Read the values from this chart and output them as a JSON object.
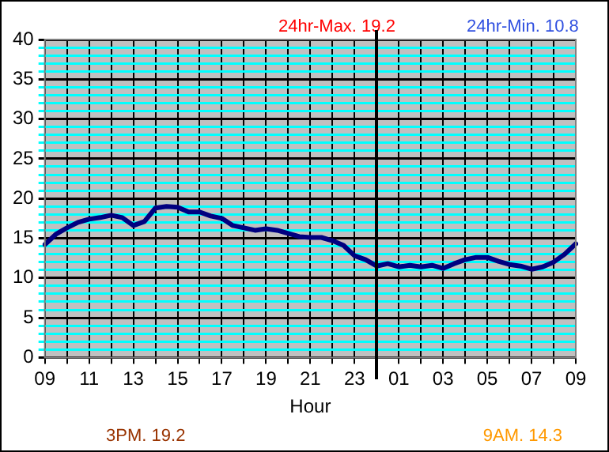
{
  "chart_data": {
    "type": "line",
    "xlabel": "Hour",
    "annotations": [
      "24hr-Max. 19.2",
      "24hr-Min. 10.8",
      "3PM. 19.2",
      "9AM. 14.3"
    ],
    "categories": [
      "09",
      null,
      null,
      null,
      "11",
      null,
      null,
      null,
      "13",
      null,
      null,
      null,
      "15",
      null,
      null,
      null,
      "17",
      null,
      null,
      null,
      "19",
      null,
      null,
      null,
      "21",
      null,
      null,
      null,
      "23",
      null,
      null,
      null,
      "01",
      null,
      null,
      null,
      "03",
      null,
      null,
      null,
      "05",
      null,
      null,
      null,
      "07",
      null,
      null,
      null,
      "09"
    ],
    "series": [
      {
        "color": "#000080",
        "values": [
          14.2,
          15.5,
          16.3,
          17.0,
          17.4,
          17.6,
          17.9,
          17.6,
          16.6,
          17.1,
          18.8,
          19.0,
          18.9,
          18.3,
          18.3,
          17.8,
          17.5,
          16.6,
          16.3,
          16.0,
          16.2,
          16.0,
          15.6,
          15.2,
          15.1,
          15.1,
          14.7,
          14.1,
          12.8,
          12.3,
          11.5,
          11.8,
          11.4,
          11.6,
          11.4,
          11.6,
          11.2,
          11.8,
          12.3,
          12.6,
          12.6,
          12.1,
          11.7,
          11.5,
          11.1,
          11.4,
          12.0,
          13.0,
          14.3
        ]
      }
    ],
    "ylim": [
      0,
      40
    ],
    "yticks": [
      0,
      {
        "value": 1,
        "label": null
      },
      {
        "value": 2,
        "label": null
      },
      {
        "value": 3,
        "label": null
      },
      {
        "value": 4,
        "label": null
      },
      5,
      {
        "value": 6,
        "label": null
      },
      {
        "value": 7,
        "label": null
      },
      {
        "value": 8,
        "label": null
      },
      {
        "value": 9,
        "label": null
      },
      10,
      {
        "value": 11,
        "label": null
      },
      {
        "value": 12,
        "label": null
      },
      {
        "value": 13,
        "label": null
      },
      {
        "value": 14,
        "label": null
      },
      15,
      {
        "value": 16,
        "label": null
      },
      {
        "value": 17,
        "label": null
      },
      {
        "value": 18,
        "label": null
      },
      {
        "value": 19,
        "label": null
      },
      20,
      {
        "value": 21,
        "label": null
      },
      {
        "value": 22,
        "label": null
      },
      {
        "value": 23,
        "label": null
      },
      {
        "value": 24,
        "label": null
      },
      25,
      {
        "value": 26,
        "label": null
      },
      {
        "value": 27,
        "label": null
      },
      {
        "value": 28,
        "label": null
      },
      {
        "value": 29,
        "label": null
      },
      30,
      {
        "value": 31,
        "label": null
      },
      {
        "value": 32,
        "label": null
      },
      {
        "value": 33,
        "label": null
      },
      {
        "value": 34,
        "label": null
      },
      35,
      {
        "value": 36,
        "label": null
      },
      {
        "value": 37,
        "label": null
      },
      {
        "value": 38,
        "label": null
      },
      {
        "value": 39,
        "label": null
      },
      40
    ],
    "grid": true,
    "legend": false,
    "marker": "none",
    "line_style": "solid"
  }
}
